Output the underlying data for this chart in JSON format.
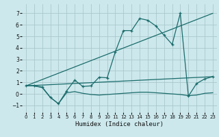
{
  "xlabel": "Humidex (Indice chaleur)",
  "background_color": "#cce8ec",
  "grid_color": "#aac8cc",
  "line_color": "#1a6b6b",
  "xlim": [
    -0.5,
    23.5
  ],
  "ylim": [
    -1.6,
    7.8
  ],
  "yticks": [
    -1,
    0,
    1,
    2,
    3,
    4,
    5,
    6,
    7
  ],
  "xticks": [
    0,
    1,
    2,
    3,
    4,
    5,
    6,
    7,
    8,
    9,
    10,
    11,
    12,
    13,
    14,
    15,
    16,
    17,
    18,
    19,
    20,
    21,
    22,
    23
  ],
  "series_jagged": {
    "x": [
      0,
      1,
      2,
      3,
      4,
      5,
      6,
      7,
      8,
      9,
      10,
      11,
      12,
      13,
      14,
      15,
      16,
      17,
      18,
      19,
      20,
      21,
      22,
      23
    ],
    "y": [
      0.7,
      0.7,
      0.6,
      -0.3,
      -0.85,
      0.25,
      1.2,
      0.65,
      0.7,
      1.45,
      1.4,
      3.65,
      5.5,
      5.5,
      6.55,
      6.4,
      5.9,
      5.1,
      4.3,
      7.0,
      -0.2,
      0.9,
      1.3,
      1.5
    ]
  },
  "series_flat": {
    "x": [
      0,
      1,
      2,
      3,
      4,
      5,
      6,
      7,
      8,
      9,
      10,
      11,
      12,
      13,
      14,
      15,
      16,
      17,
      18,
      19,
      20,
      21,
      22,
      23
    ],
    "y": [
      0.7,
      0.7,
      0.55,
      -0.3,
      -0.85,
      0.1,
      0.2,
      0.05,
      -0.05,
      -0.1,
      -0.05,
      0.0,
      0.05,
      0.1,
      0.15,
      0.15,
      0.1,
      0.05,
      0.0,
      -0.05,
      -0.15,
      -0.1,
      0.05,
      0.1
    ]
  },
  "series_diag1": {
    "x": [
      0,
      23
    ],
    "y": [
      0.7,
      7.0
    ]
  },
  "series_diag2": {
    "x": [
      0,
      23
    ],
    "y": [
      0.7,
      1.5
    ]
  }
}
